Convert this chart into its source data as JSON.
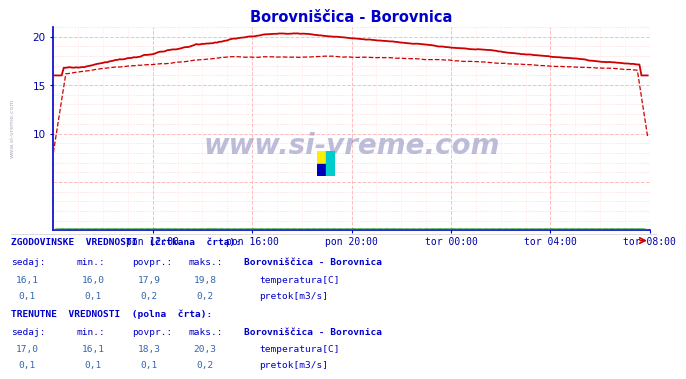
{
  "title": "Borovniščica - Borovnica",
  "title_color": "#0000cc",
  "bg_color": "#ffffff",
  "plot_bg_color": "#ffffff",
  "grid_color_major": "#ffbbbb",
  "grid_color_minor": "#ffdddd",
  "axis_color": "#0000cc",
  "xaxis_arrow_color": "#cc0000",
  "tick_label_color": "#0000aa",
  "xlim": [
    0,
    288
  ],
  "ylim": [
    0,
    21
  ],
  "yticks": [
    10,
    15,
    20
  ],
  "xtick_positions": [
    48,
    96,
    144,
    192,
    240,
    288
  ],
  "xtick_labels": [
    "pon 12:00",
    "pon 16:00",
    "pon 20:00",
    "tor 00:00",
    "tor 04:00",
    "tor 08:00"
  ],
  "temp_color": "#cc0000",
  "flow_color": "#008800",
  "watermark": "www.si-vreme.com",
  "watermark_color": "#8888bb",
  "bottom_text_color": "#0000cc",
  "bottom_val_color": "#3366aa",
  "hist_label": "ZGODOVINSKE  VREDNOSTI  (črtkana  črta):",
  "curr_label": "TRENUTNE  VREDNOSTI  (polna  črta):",
  "station_name": "Borovniščica - Borovnica",
  "col_headers": [
    "sedaj:",
    "min.:",
    "povpr.:",
    "maks.:"
  ],
  "hist_temp": [
    "16,1",
    "16,0",
    "17,9",
    "19,8"
  ],
  "hist_flow": [
    "0,1",
    "0,1",
    "0,2",
    "0,2"
  ],
  "curr_temp": [
    "17,0",
    "16,1",
    "18,3",
    "20,3"
  ],
  "curr_flow": [
    "0,1",
    "0,1",
    "0,1",
    "0,2"
  ],
  "temp_label": "temperatura[C]",
  "flow_label": "pretok[m3/s]"
}
